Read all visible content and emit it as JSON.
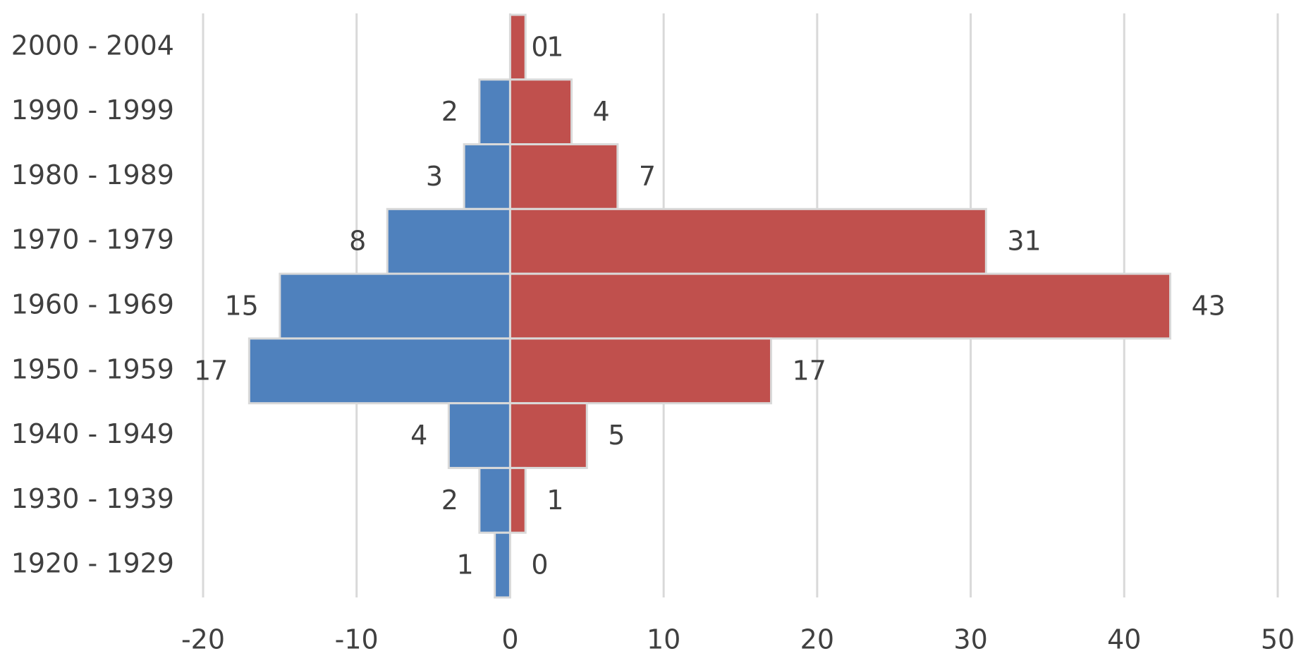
{
  "chart_data": {
    "type": "bar",
    "orientation": "horizontal",
    "stacked": false,
    "categories": [
      "2000 - 2004",
      "1990 - 1999",
      "1980 - 1989",
      "1970 - 1979",
      "1960 - 1969",
      "1950 - 1959",
      "1940 - 1949",
      "1930 - 1939",
      "1920 - 1929"
    ],
    "series": [
      {
        "color": "#4f81bd",
        "values": [
          0,
          -2,
          -3,
          -8,
          -15,
          -17,
          -4,
          -2,
          -1
        ],
        "value_labels": [
          "0",
          "2",
          "3",
          "8",
          "15",
          "17",
          "4",
          "2",
          "1"
        ]
      },
      {
        "color": "#c0504d",
        "values": [
          1,
          4,
          7,
          31,
          43,
          17,
          5,
          1,
          0
        ]
      }
    ],
    "xlim": [
      -20,
      50
    ],
    "xticks": [
      -20,
      -10,
      0,
      10,
      20,
      30,
      40,
      50
    ],
    "grid": true
  }
}
